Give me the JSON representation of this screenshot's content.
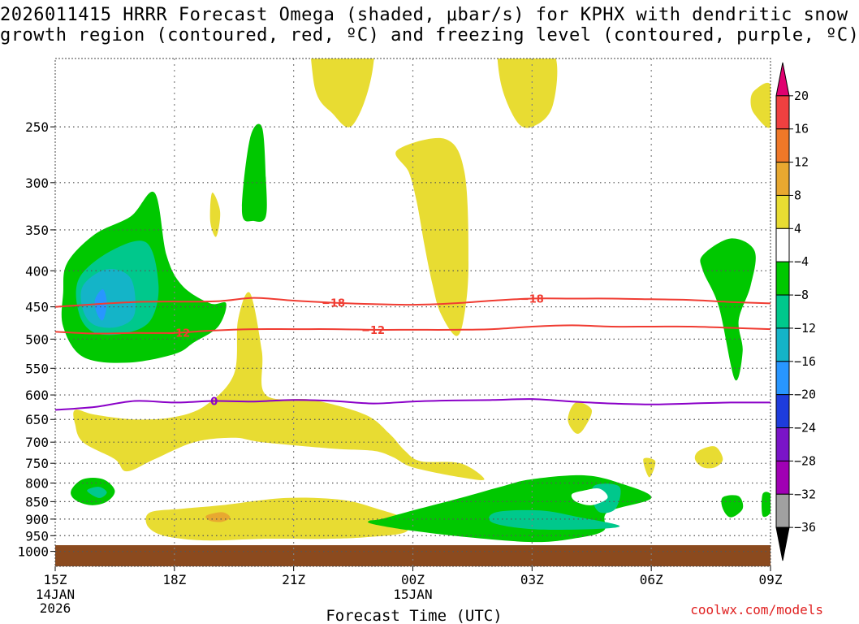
{
  "title": {
    "line1": "2026011415 HRRR Forecast Omega (shaded, μbar/s) for KPHX with dendritic snow",
    "line2": "growth region (contoured, red, ºC) and freezing level (contoured, purple, ºC)"
  },
  "credit": "coolwx.com/models",
  "colors": {
    "ground": "#8B4A1E",
    "snow_contour": "#f03c32",
    "freezing_contour": "#8a00c8",
    "grid": "#808080"
  },
  "chart_data": {
    "type": "contour",
    "xlabel": "Forecast Time (UTC)",
    "ylabel": "",
    "x_ticks": [
      {
        "label": "15Z",
        "sub1": "14JAN",
        "sub2": "2026",
        "hour": 0
      },
      {
        "label": "18Z",
        "sub1": "",
        "sub2": "",
        "hour": 3
      },
      {
        "label": "21Z",
        "sub1": "",
        "sub2": "",
        "hour": 6
      },
      {
        "label": "00Z",
        "sub1": "15JAN",
        "sub2": "",
        "hour": 9
      },
      {
        "label": "03Z",
        "sub1": "",
        "sub2": "",
        "hour": 12
      },
      {
        "label": "06Z",
        "sub1": "",
        "sub2": "",
        "hour": 15
      },
      {
        "label": "09Z",
        "sub1": "",
        "sub2": "",
        "hour": 18
      }
    ],
    "xlim": [
      0,
      18
    ],
    "y_scale": "log",
    "y_ticks": [
      250,
      300,
      350,
      400,
      450,
      500,
      550,
      600,
      650,
      700,
      750,
      800,
      850,
      900,
      950,
      1000
    ],
    "ylim": [
      1050,
      200
    ],
    "grid": true,
    "colorbar": {
      "labels": [
        "20",
        "16",
        "12",
        "8",
        "4",
        "−4",
        "−8",
        "−12",
        "−16",
        "−20",
        "−24",
        "−28",
        "−32",
        "−36"
      ],
      "colors": [
        "#e00070",
        "#f04040",
        "#f07828",
        "#e8a830",
        "#e8dc32",
        "#ffffff",
        "#00c800",
        "#00c88c",
        "#14b4c8",
        "#2896ff",
        "#1e3cdc",
        "#7a14c8",
        "#a000b4",
        "#a0a0a0",
        "#000000"
      ]
    },
    "omega_regions": [
      {
        "level": "4",
        "color": "#e8dc32",
        "polygon": [
          [
            0.5,
            630
          ],
          [
            1,
            640
          ],
          [
            2,
            650
          ],
          [
            3,
            645
          ],
          [
            3.8,
            620
          ],
          [
            4.5,
            560
          ],
          [
            4.6,
            470
          ],
          [
            4.9,
            430
          ],
          [
            5.2,
            520
          ],
          [
            5.3,
            600
          ],
          [
            6.5,
            610
          ],
          [
            7.8,
            640
          ],
          [
            8.4,
            680
          ],
          [
            8.8,
            720
          ],
          [
            9.2,
            745
          ],
          [
            10.2,
            750
          ],
          [
            10.8,
            790
          ],
          [
            10.2,
            785
          ],
          [
            9,
            760
          ],
          [
            8.5,
            735
          ],
          [
            8,
            720
          ],
          [
            7,
            715
          ],
          [
            5.2,
            700
          ],
          [
            4.5,
            690
          ],
          [
            3.5,
            700
          ],
          [
            2.5,
            740
          ],
          [
            1.8,
            770
          ],
          [
            1.5,
            740
          ],
          [
            0.7,
            700
          ],
          [
            0.5,
            660
          ]
        ]
      },
      {
        "level": "4",
        "color": "#e8dc32",
        "polygon": [
          [
            2.4,
            880
          ],
          [
            3.2,
            870
          ],
          [
            4.2,
            860
          ],
          [
            5.8,
            840
          ],
          [
            7.2,
            845
          ],
          [
            8.1,
            870
          ],
          [
            8.8,
            900
          ],
          [
            8.8,
            940
          ],
          [
            7.8,
            955
          ],
          [
            6.8,
            960
          ],
          [
            5.2,
            960
          ],
          [
            4,
            965
          ],
          [
            3.2,
            960
          ],
          [
            2.6,
            945
          ],
          [
            2.3,
            915
          ]
        ]
      },
      {
        "level": "4",
        "color": "#e8dc32",
        "polygon": [
          [
            8.6,
            270
          ],
          [
            9.8,
            260
          ],
          [
            10.3,
            290
          ],
          [
            10.4,
            390
          ],
          [
            10.3,
            460
          ],
          [
            10.1,
            495
          ],
          [
            9.7,
            460
          ],
          [
            9.5,
            420
          ],
          [
            9.3,
            370
          ],
          [
            9.1,
            320
          ],
          [
            8.9,
            290
          ]
        ]
      },
      {
        "level": "4",
        "color": "#e8dc32",
        "polygon": [
          [
            6.5,
            150
          ],
          [
            8,
            150
          ],
          [
            8,
            205
          ],
          [
            7.5,
            248
          ],
          [
            7,
            240
          ],
          [
            6.5,
            215
          ]
        ]
      },
      {
        "level": "4",
        "color": "#e8dc32",
        "polygon": [
          [
            11.2,
            185
          ],
          [
            12,
            185
          ],
          [
            12.6,
            200
          ],
          [
            12.5,
            235
          ],
          [
            12,
            250
          ],
          [
            11.6,
            245
          ],
          [
            11.2,
            215
          ]
        ]
      },
      {
        "level": "4",
        "color": "#e8dc32",
        "polygon": [
          [
            17.6,
            222
          ],
          [
            18,
            218
          ],
          [
            18,
            250
          ],
          [
            17.6,
            240
          ],
          [
            17.5,
            230
          ]
        ]
      },
      {
        "level": "4",
        "color": "#e8dc32",
        "polygon": [
          [
            3.95,
            310
          ],
          [
            4.15,
            330
          ],
          [
            4.05,
            358
          ],
          [
            3.9,
            340
          ]
        ]
      },
      {
        "level": "4",
        "color": "#e8dc32",
        "polygon": [
          [
            13.1,
            615
          ],
          [
            13.5,
            630
          ],
          [
            13.3,
            670
          ],
          [
            13.1,
            680
          ],
          [
            12.9,
            650
          ]
        ]
      },
      {
        "level": "4",
        "color": "#e8dc32",
        "polygon": [
          [
            16.2,
            720
          ],
          [
            16.6,
            710
          ],
          [
            16.8,
            740
          ],
          [
            16.6,
            760
          ],
          [
            16.3,
            760
          ],
          [
            16.1,
            740
          ]
        ]
      },
      {
        "level": "4",
        "color": "#e8dc32",
        "polygon": [
          [
            14.8,
            740
          ],
          [
            15.1,
            745
          ],
          [
            14.95,
            785
          ]
        ]
      },
      {
        "level": "4",
        "color": "#e8a830",
        "polygon": [
          [
            3.8,
            890
          ],
          [
            4.2,
            880
          ],
          [
            4.4,
            895
          ],
          [
            4.2,
            908
          ],
          [
            3.9,
            905
          ]
        ]
      },
      {
        "level": "-4",
        "color": "#00c800",
        "polygon": [
          [
            0.3,
            390
          ],
          [
            1,
            355
          ],
          [
            1.9,
            335
          ],
          [
            2.5,
            310
          ],
          [
            2.8,
            380
          ],
          [
            3.2,
            420
          ],
          [
            3.9,
            445
          ],
          [
            4.3,
            445
          ],
          [
            4.1,
            480
          ],
          [
            3.5,
            505
          ],
          [
            3,
            525
          ],
          [
            1.8,
            540
          ],
          [
            0.7,
            530
          ],
          [
            0.2,
            480
          ],
          [
            0.2,
            430
          ]
        ]
      },
      {
        "level": "-4",
        "color": "#00c800",
        "polygon": [
          [
            4.9,
            260
          ],
          [
            5.2,
            250
          ],
          [
            5.3,
            295
          ],
          [
            5.3,
            335
          ],
          [
            5,
            340
          ],
          [
            4.7,
            330
          ]
        ]
      },
      {
        "level": "-4",
        "color": "#00c800",
        "polygon": [
          [
            16.3,
            380
          ],
          [
            17,
            360
          ],
          [
            17.6,
            375
          ],
          [
            17.5,
            420
          ],
          [
            17.2,
            470
          ],
          [
            17.3,
            520
          ],
          [
            17.1,
            570
          ],
          [
            16.7,
            450
          ],
          [
            16.3,
            400
          ]
        ]
      },
      {
        "level": "-4",
        "color": "#00c800",
        "polygon": [
          [
            0.4,
            820
          ],
          [
            0.7,
            790
          ],
          [
            1.2,
            790
          ],
          [
            1.5,
            820
          ],
          [
            1.3,
            850
          ],
          [
            0.9,
            860
          ],
          [
            0.5,
            845
          ]
        ]
      },
      {
        "level": "-4",
        "color": "#00c800",
        "polygon": [
          [
            17.8,
            830
          ],
          [
            18,
            830
          ],
          [
            18,
            880
          ],
          [
            17.8,
            890
          ]
        ]
      },
      {
        "level": "-4",
        "color": "#00c800",
        "polygon": [
          [
            8.2,
            900
          ],
          [
            9,
            875
          ],
          [
            10.2,
            840
          ],
          [
            11.2,
            810
          ],
          [
            12,
            790
          ],
          [
            13.3,
            780
          ],
          [
            14.2,
            800
          ],
          [
            15,
            840
          ],
          [
            13.9,
            880
          ],
          [
            13.8,
            935
          ],
          [
            13,
            960
          ],
          [
            12,
            970
          ],
          [
            10.4,
            955
          ],
          [
            9,
            935
          ],
          [
            8,
            915
          ],
          [
            7.9,
            905
          ]
        ]
      },
      {
        "level": "-4",
        "color": "#00c800",
        "polygon": [
          [
            16.8,
            838
          ],
          [
            17.2,
            835
          ],
          [
            17.3,
            870
          ],
          [
            17.0,
            895
          ],
          [
            16.8,
            870
          ]
        ]
      },
      {
        "level": "-8",
        "color": "#00c88c",
        "polygon": [
          [
            0.6,
            410
          ],
          [
            1.4,
            375
          ],
          [
            2.3,
            365
          ],
          [
            2.6,
            420
          ],
          [
            2.4,
            470
          ],
          [
            1.8,
            490
          ],
          [
            1.0,
            490
          ],
          [
            0.6,
            460
          ]
        ]
      },
      {
        "level": "-8",
        "color": "#00c88c",
        "polygon": [
          [
            0.8,
            820
          ],
          [
            1.1,
            810
          ],
          [
            1.3,
            825
          ],
          [
            1.1,
            840
          ]
        ]
      },
      {
        "level": "-8",
        "color": "#00c88c",
        "polygon": [
          [
            11.1,
            880
          ],
          [
            12.2,
            875
          ],
          [
            13.2,
            895
          ],
          [
            14.2,
            920
          ],
          [
            13.5,
            930
          ],
          [
            12,
            930
          ],
          [
            11,
            910
          ]
        ]
      },
      {
        "level": "-8",
        "color": "#00c88c",
        "polygon": [
          [
            13.6,
            805
          ],
          [
            14.2,
            810
          ],
          [
            14.1,
            870
          ],
          [
            13.7,
            880
          ],
          [
            13.5,
            840
          ]
        ]
      },
      {
        "level": "-12",
        "color": "#14b4c8",
        "polygon": [
          [
            0.7,
            420
          ],
          [
            1.3,
            398
          ],
          [
            1.9,
            410
          ],
          [
            2.0,
            460
          ],
          [
            1.6,
            480
          ],
          [
            1.0,
            478
          ],
          [
            0.7,
            455
          ]
        ]
      },
      {
        "level": "-16",
        "color": "#2896ff",
        "polygon": [
          [
            1.0,
            440
          ],
          [
            1.2,
            425
          ],
          [
            1.3,
            445
          ],
          [
            1.2,
            470
          ],
          [
            1.05,
            460
          ]
        ]
      },
      {
        "level": "4",
        "color": "#ffffff",
        "polygon": [
          [
            13.3,
            820
          ],
          [
            13.7,
            815
          ],
          [
            13.9,
            840
          ],
          [
            13.5,
            860
          ],
          [
            13.1,
            850
          ],
          [
            13.0,
            830
          ]
        ]
      }
    ],
    "snow_contours": [
      {
        "label": "-18",
        "points": [
          [
            0,
            450
          ],
          [
            2,
            443
          ],
          [
            4,
            442
          ],
          [
            5,
            437
          ],
          [
            6,
            441
          ],
          [
            7,
            444
          ],
          [
            8,
            446
          ],
          [
            9,
            447
          ],
          [
            10,
            445
          ],
          [
            11,
            441
          ],
          [
            12,
            438
          ],
          [
            13,
            438
          ],
          [
            14,
            438
          ],
          [
            15,
            439
          ],
          [
            16,
            440
          ],
          [
            17,
            443
          ],
          [
            18,
            445
          ]
        ],
        "label_x": [
          7,
          12
        ]
      },
      {
        "label": "-12",
        "points": [
          [
            0,
            488
          ],
          [
            1,
            491
          ],
          [
            2,
            490
          ],
          [
            3,
            490
          ],
          [
            4,
            486
          ],
          [
            5,
            484
          ],
          [
            6,
            484
          ],
          [
            7,
            484
          ],
          [
            8,
            485
          ],
          [
            9,
            485
          ],
          [
            10,
            485
          ],
          [
            11,
            484
          ],
          [
            12,
            480
          ],
          [
            13,
            478
          ],
          [
            14,
            480
          ],
          [
            15,
            480
          ],
          [
            16,
            480
          ],
          [
            17,
            482
          ],
          [
            18,
            484
          ]
        ],
        "label_x": [
          3.1,
          8
        ]
      },
      {
        "label": "0",
        "points": [
          [
            0,
            630
          ],
          [
            1,
            624
          ],
          [
            2,
            612
          ],
          [
            3,
            615
          ],
          [
            4,
            612
          ],
          [
            5,
            613
          ],
          [
            6,
            610
          ],
          [
            7,
            612
          ],
          [
            8,
            617
          ],
          [
            9,
            613
          ],
          [
            10,
            611
          ],
          [
            11,
            610
          ],
          [
            12,
            608
          ],
          [
            13,
            613
          ],
          [
            14,
            617
          ],
          [
            15,
            619
          ],
          [
            16,
            617
          ],
          [
            17,
            615
          ],
          [
            18,
            615
          ]
        ],
        "label_x": [
          4
        ]
      }
    ],
    "ground_level": 980
  }
}
